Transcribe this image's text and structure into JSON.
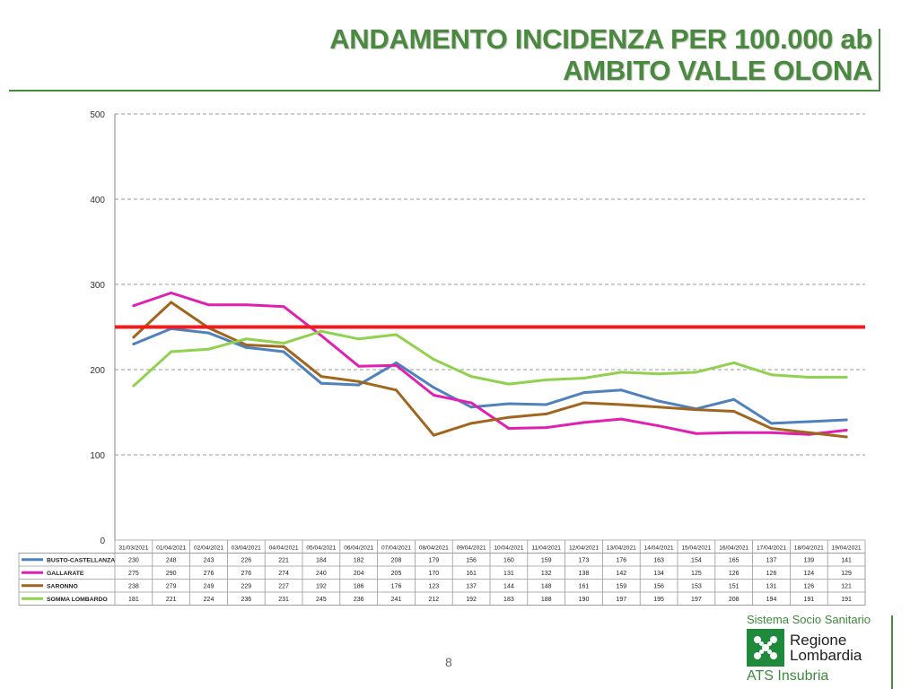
{
  "header": {
    "title_line1": "ANDAMENTO INCIDENZA PER 100.000 ab",
    "title_line2": "AMBITO VALLE OLONA"
  },
  "chart_data": {
    "type": "line",
    "title": "",
    "xlabel": "",
    "ylabel": "",
    "ylim": [
      0,
      500
    ],
    "yticks": [
      "0",
      "100",
      "200",
      "300",
      "400",
      "500"
    ],
    "grid": "horizontal dashed",
    "legend": "data table below plot",
    "threshold": {
      "value": 250,
      "color": "#ee1c1c"
    },
    "categories": [
      "31/03/2021",
      "01/04/2021",
      "02/04/2021",
      "03/04/2021",
      "04/04/2021",
      "05/04/2021",
      "06/04/2021",
      "07/04/2021",
      "08/04/2021",
      "09/04/2021",
      "10/04/2021",
      "11/04/2021",
      "12/04/2021",
      "13/04/2021",
      "14/04/2021",
      "15/04/2021",
      "16/04/2021",
      "17/04/2021",
      "18/04/2021",
      "19/04/2021"
    ],
    "series": [
      {
        "name": "BUSTO-CASTELLANZA",
        "color": "#4f81bd",
        "values": [
          230,
          248,
          243,
          226,
          221,
          184,
          182,
          208,
          179,
          156,
          160,
          159,
          173,
          176,
          163,
          154,
          165,
          137,
          139,
          141
        ],
        "labels": [
          "230",
          "248",
          "243",
          "226",
          "221",
          "184",
          "182",
          "208",
          "179",
          "156",
          "160",
          "159",
          "173",
          "176",
          "163",
          "154",
          "165",
          "137",
          "139",
          "141"
        ]
      },
      {
        "name": "GALLARATE",
        "color": "#e020b0",
        "values": [
          275,
          290,
          276,
          276,
          274,
          240,
          204,
          205,
          170,
          161,
          131,
          132,
          138,
          142,
          134,
          125,
          126,
          126,
          124,
          129
        ],
        "labels": [
          "275",
          "290",
          "276",
          "276",
          "274",
          "240",
          "204",
          "205",
          "170",
          "161",
          "131",
          "132",
          "138",
          "142",
          "134",
          "125",
          "126",
          "126",
          "124",
          "129"
        ]
      },
      {
        "name": "SARONNO",
        "color": "#a0661e",
        "values": [
          238,
          279,
          249,
          229,
          227,
          192,
          186,
          176,
          123,
          137,
          144,
          148,
          161,
          159,
          156,
          153,
          151,
          131,
          126,
          121
        ],
        "labels": [
          "238",
          "279",
          "249",
          "229",
          "227",
          "192",
          "186",
          "176",
          "123",
          "137",
          "144",
          "148",
          "161",
          "159",
          "156",
          "153",
          "151",
          "131",
          "126",
          "121"
        ]
      },
      {
        "name": "SOMMA LOMBARDO",
        "color": "#92d050",
        "values": [
          181,
          221,
          224,
          236,
          231,
          245,
          236,
          241,
          212,
          192,
          183,
          188,
          190,
          197,
          195,
          197,
          208,
          194,
          191,
          191
        ],
        "labels": [
          "181",
          "221",
          "224",
          "236",
          "231",
          "245",
          "236",
          "241",
          "212",
          "192",
          "183",
          "188",
          "190",
          "197",
          "195",
          "197",
          "208",
          "194",
          "191",
          "191"
        ]
      }
    ]
  },
  "footer": {
    "page_number": "8",
    "logo_subtitle": "Sistema Socio Sanitario",
    "logo_word1": "Regione",
    "logo_word2": "Lombardia",
    "logo_org": "ATS Insubria"
  }
}
